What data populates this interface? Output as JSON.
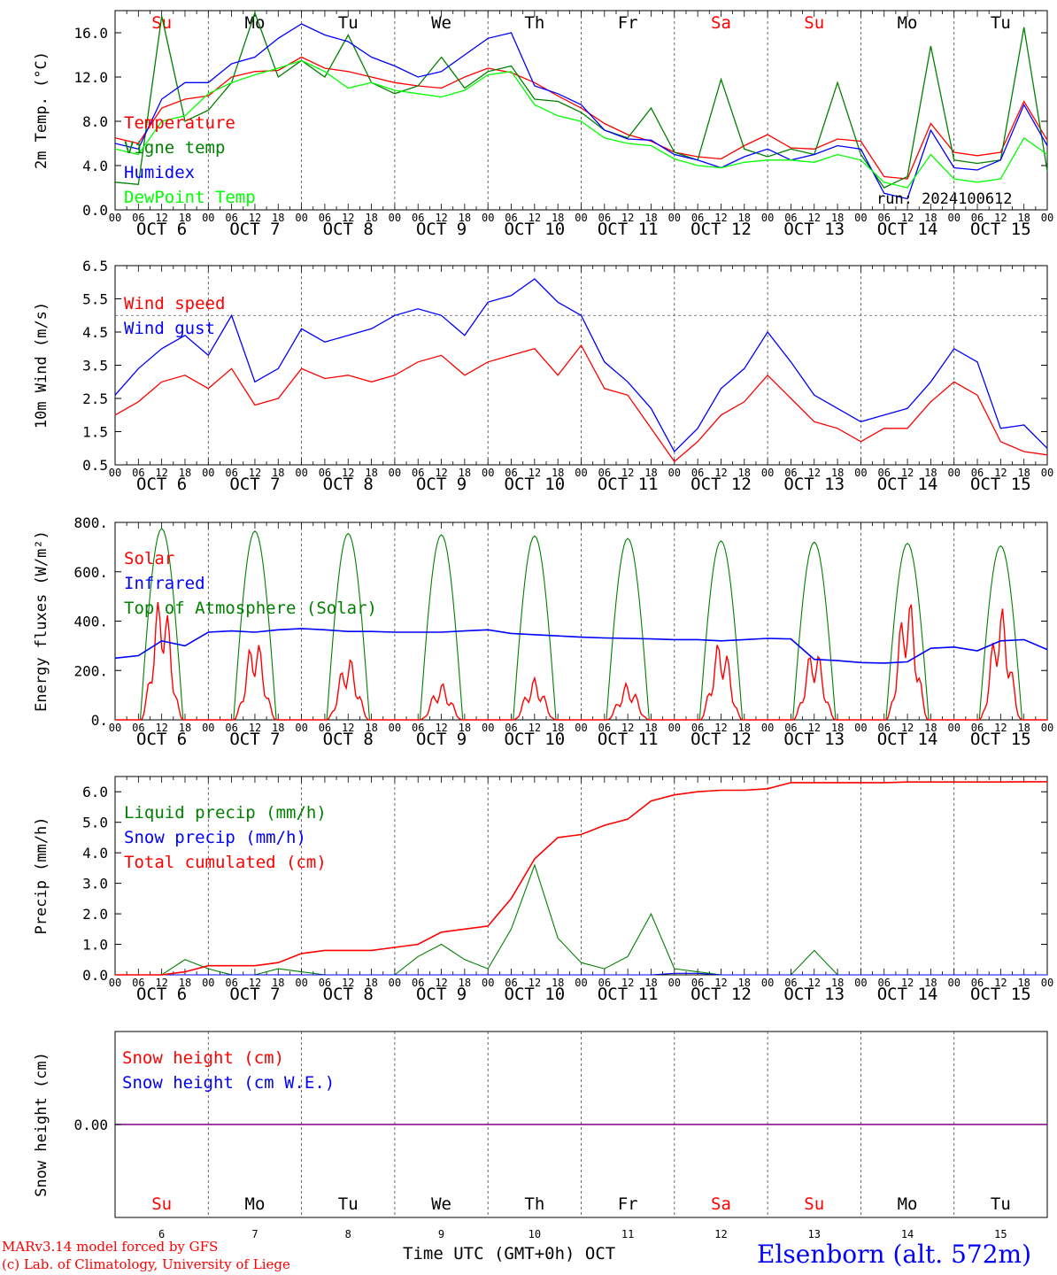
{
  "chart_data": [
    {
      "type": "line",
      "ylabel": "2m Temp. (°C)",
      "ylim": [
        0,
        18
      ],
      "yticks": [
        "0.0",
        "4.0",
        "8.0",
        "12.0",
        "16.0"
      ],
      "ytick_values": [
        0,
        4,
        8,
        12,
        16
      ],
      "x_hours": [
        0,
        6,
        12,
        18,
        24,
        30,
        36,
        42,
        48,
        54,
        60,
        66,
        72,
        78,
        84,
        90,
        96,
        102,
        108,
        114,
        120,
        126,
        132,
        138,
        144,
        150,
        156,
        162,
        168,
        174,
        180,
        186,
        192,
        198,
        204,
        210,
        216,
        222,
        228,
        234,
        240
      ],
      "series": [
        {
          "name": "Temperature",
          "color": "#ff0000",
          "values": [
            6.5,
            6.0,
            9.2,
            10.0,
            10.3,
            12.0,
            12.5,
            12.6,
            13.8,
            12.8,
            12.5,
            12.0,
            11.5,
            11.2,
            11.0,
            12.0,
            12.8,
            12.4,
            11.5,
            10.3,
            9.2,
            7.8,
            6.8,
            6.2,
            5.2,
            4.8,
            4.6,
            5.8,
            6.8,
            5.6,
            5.5,
            6.4,
            6.2,
            3.0,
            2.8,
            7.8,
            5.2,
            4.9,
            5.2,
            9.8,
            6.3
          ]
        },
        {
          "name": "Vigne temp",
          "color": "#008000",
          "values": [
            2.5,
            2.3,
            17.5,
            8.0,
            9.0,
            11.5,
            17.8,
            12.0,
            13.5,
            12.0,
            15.8,
            11.5,
            10.5,
            11.2,
            13.8,
            11.0,
            12.5,
            13.0,
            10.0,
            9.8,
            8.8,
            7.2,
            6.5,
            9.2,
            5.2,
            4.5,
            11.8,
            5.5,
            4.8,
            5.5,
            5.0,
            11.5,
            5.0,
            2.0,
            3.0,
            14.8,
            4.5,
            4.2,
            4.5,
            16.5,
            3.5
          ]
        },
        {
          "name": "Humidex",
          "color": "#0000ff",
          "values": [
            6.0,
            5.5,
            10.0,
            11.5,
            11.5,
            13.2,
            13.8,
            15.5,
            16.8,
            15.8,
            15.2,
            13.8,
            13.0,
            12.0,
            12.5,
            14.0,
            15.5,
            16.0,
            11.2,
            10.5,
            9.5,
            7.2,
            6.4,
            6.3,
            5.0,
            4.5,
            3.8,
            4.8,
            5.5,
            4.5,
            5.0,
            5.8,
            5.5,
            1.5,
            1.0,
            7.2,
            3.8,
            3.6,
            4.5,
            9.5,
            5.8
          ]
        },
        {
          "name": "DewPoint Temp",
          "color": "#00ff00",
          "values": [
            5.5,
            5.0,
            8.0,
            8.5,
            10.5,
            11.5,
            12.2,
            12.8,
            13.5,
            12.5,
            11.0,
            11.5,
            10.8,
            10.5,
            10.2,
            10.8,
            12.2,
            12.5,
            9.5,
            8.5,
            8.0,
            6.5,
            6.0,
            5.8,
            4.6,
            4.0,
            3.8,
            4.3,
            4.5,
            4.5,
            4.3,
            5.0,
            4.5,
            2.5,
            2.0,
            5.0,
            2.8,
            2.5,
            2.8,
            6.5,
            5.0
          ]
        }
      ],
      "annotations": [
        "run: 2024100612"
      ]
    },
    {
      "type": "line",
      "ylabel": "10m Wind (m/s)",
      "ylim": [
        0.5,
        6.5
      ],
      "yticks": [
        "0.5",
        "1.5",
        "2.5",
        "3.5",
        "4.5",
        "5.5",
        "6.5"
      ],
      "ytick_values": [
        0.5,
        1.5,
        2.5,
        3.5,
        4.5,
        5.5,
        6.5
      ],
      "reference_line": 5.0,
      "x_hours": [
        0,
        6,
        12,
        18,
        24,
        30,
        36,
        42,
        48,
        54,
        60,
        66,
        72,
        78,
        84,
        90,
        96,
        102,
        108,
        114,
        120,
        126,
        132,
        138,
        144,
        150,
        156,
        162,
        168,
        174,
        180,
        186,
        192,
        198,
        204,
        210,
        216,
        222,
        228,
        234,
        240
      ],
      "series": [
        {
          "name": "Wind speed",
          "color": "#ff0000",
          "values": [
            2.0,
            2.4,
            3.0,
            3.2,
            2.8,
            3.4,
            2.3,
            2.5,
            3.4,
            3.1,
            3.2,
            3.0,
            3.2,
            3.6,
            3.8,
            3.2,
            3.6,
            3.8,
            4.0,
            3.2,
            4.1,
            2.8,
            2.6,
            1.6,
            0.6,
            1.2,
            2.0,
            2.4,
            3.2,
            2.5,
            1.8,
            1.6,
            1.2,
            1.6,
            1.6,
            2.4,
            3.0,
            2.6,
            1.2,
            0.9,
            0.8
          ]
        },
        {
          "name": "Wind gust",
          "color": "#0000ff",
          "values": [
            2.6,
            3.4,
            4.0,
            4.4,
            3.8,
            5.0,
            3.0,
            3.4,
            4.6,
            4.2,
            4.4,
            4.6,
            5.0,
            5.2,
            5.0,
            4.4,
            5.4,
            5.6,
            6.1,
            5.4,
            5.0,
            3.6,
            3.0,
            2.2,
            0.9,
            1.6,
            2.8,
            3.4,
            4.5,
            3.6,
            2.6,
            2.2,
            1.8,
            2.0,
            2.2,
            3.0,
            4.0,
            3.6,
            1.6,
            1.7,
            1.0
          ]
        }
      ]
    },
    {
      "type": "line",
      "ylabel": "Energy fluxes (W/m²)",
      "ylim": [
        0,
        800
      ],
      "yticks": [
        "0.",
        "200.",
        "400.",
        "600.",
        "800."
      ],
      "ytick_values": [
        0,
        200,
        400,
        600,
        800
      ],
      "toa_peaks": [
        775,
        765,
        755,
        750,
        745,
        735,
        725,
        720,
        715,
        705
      ],
      "solar_peaks": [
        520,
        340,
        260,
        150,
        170,
        150,
        330,
        300,
        510,
        460
      ],
      "infrared": {
        "x_hours": [
          0,
          6,
          12,
          18,
          24,
          30,
          36,
          42,
          48,
          54,
          60,
          66,
          72,
          78,
          84,
          90,
          96,
          102,
          108,
          114,
          120,
          126,
          132,
          138,
          144,
          150,
          156,
          162,
          168,
          174,
          180,
          186,
          192,
          198,
          204,
          210,
          216,
          222,
          228,
          234,
          240
        ],
        "values": [
          250,
          260,
          320,
          300,
          355,
          360,
          355,
          365,
          370,
          365,
          358,
          358,
          355,
          355,
          355,
          360,
          365,
          350,
          345,
          340,
          335,
          332,
          330,
          328,
          325,
          325,
          320,
          325,
          330,
          328,
          245,
          240,
          232,
          230,
          235,
          290,
          295,
          280,
          320,
          325,
          285
        ]
      },
      "series": [
        {
          "name": "Solar",
          "color": "#ff0000"
        },
        {
          "name": "Infrared",
          "color": "#0000ff"
        },
        {
          "name": "Top of Atmosphere (Solar)",
          "color": "#008000"
        }
      ]
    },
    {
      "type": "line",
      "ylabel": "Precip (mm/h)",
      "ylim": [
        0,
        6.5
      ],
      "yticks": [
        "0.0",
        "1.0",
        "2.0",
        "3.0",
        "4.0",
        "5.0",
        "6.0"
      ],
      "ytick_values": [
        0,
        1,
        2,
        3,
        4,
        5,
        6
      ],
      "x_hours": [
        0,
        6,
        12,
        18,
        24,
        30,
        36,
        42,
        48,
        54,
        60,
        66,
        72,
        78,
        84,
        90,
        96,
        102,
        108,
        114,
        120,
        126,
        132,
        138,
        144,
        150,
        156,
        162,
        168,
        174,
        180,
        186,
        192,
        198,
        204,
        210,
        216,
        222,
        228,
        234,
        240
      ],
      "series": [
        {
          "name": "Liquid precip (mm/h)",
          "color": "#008000",
          "values": [
            0,
            0,
            0,
            0.5,
            0.2,
            0,
            0,
            0.2,
            0.1,
            0,
            0,
            0,
            0,
            0.6,
            1.0,
            0.5,
            0.2,
            1.5,
            3.6,
            1.2,
            0.4,
            0.2,
            0.6,
            2.0,
            0.2,
            0.1,
            0,
            0,
            0,
            0,
            0.8,
            0,
            0,
            0,
            0,
            0,
            0,
            0,
            0,
            0,
            0
          ]
        },
        {
          "name": "Snow precip (mm/h)",
          "color": "#0000ff",
          "values": [
            0,
            0,
            0,
            0,
            0,
            0,
            0,
            0,
            0,
            0,
            0,
            0,
            0,
            0,
            0,
            0,
            0,
            0,
            0,
            0,
            0,
            0,
            0,
            0,
            0.05,
            0.05,
            0,
            0,
            0,
            0,
            0,
            0,
            0,
            0,
            0,
            0,
            0,
            0,
            0,
            0,
            0
          ]
        },
        {
          "name": "Total cumulated (cm)",
          "color": "#ff0000",
          "values": [
            0,
            0,
            0,
            0.1,
            0.3,
            0.3,
            0.3,
            0.4,
            0.7,
            0.8,
            0.8,
            0.8,
            0.9,
            1.0,
            1.4,
            1.5,
            1.6,
            2.5,
            3.8,
            4.5,
            4.6,
            4.9,
            5.1,
            5.7,
            5.9,
            6.0,
            6.05,
            6.05,
            6.1,
            6.3,
            6.3,
            6.3,
            6.3,
            6.3,
            6.32,
            6.32,
            6.32,
            6.32,
            6.32,
            6.33,
            6.33
          ]
        }
      ]
    },
    {
      "type": "line",
      "ylabel": "Snow height (cm)",
      "yticks": [
        "0.00"
      ],
      "ytick_values": [
        0
      ],
      "series": [
        {
          "name": "Snow height (cm)",
          "color": "#ff0000",
          "value": 0.0
        },
        {
          "name": "Snow height (cm W.E.)",
          "color": "#0000ff",
          "value": 0.0
        }
      ]
    }
  ],
  "axis": {
    "hour_labels": [
      "00",
      "06",
      "12",
      "18"
    ],
    "end_label": "00",
    "dates": [
      "OCT  6",
      "OCT  7",
      "OCT  8",
      "OCT  9",
      "OCT 10",
      "OCT 11",
      "OCT 12",
      "OCT 13",
      "OCT 14",
      "OCT 15"
    ],
    "weekdays": [
      "Su",
      "Mo",
      "Tu",
      "We",
      "Th",
      "Fr",
      "Sa",
      "Su",
      "Mo",
      "Tu"
    ],
    "weekend": [
      true,
      false,
      false,
      false,
      false,
      false,
      true,
      true,
      false,
      false
    ],
    "days": [
      "6",
      "7",
      "8",
      "9",
      "10",
      "11",
      "12",
      "13",
      "14",
      "15"
    ],
    "xlabel": "Time UTC (GMT+0h)",
    "month": "OCT"
  },
  "footer": {
    "model": "MARv3.14 model forced by GFS",
    "lab": "(c) Lab. of Climatology, University of Liege",
    "station": "Elsenborn (alt. 572m)"
  },
  "colors": {
    "red": "#ff0000",
    "green": "#008000",
    "blue": "#0000ff",
    "lime": "#00ff00",
    "purple": "#800080"
  }
}
